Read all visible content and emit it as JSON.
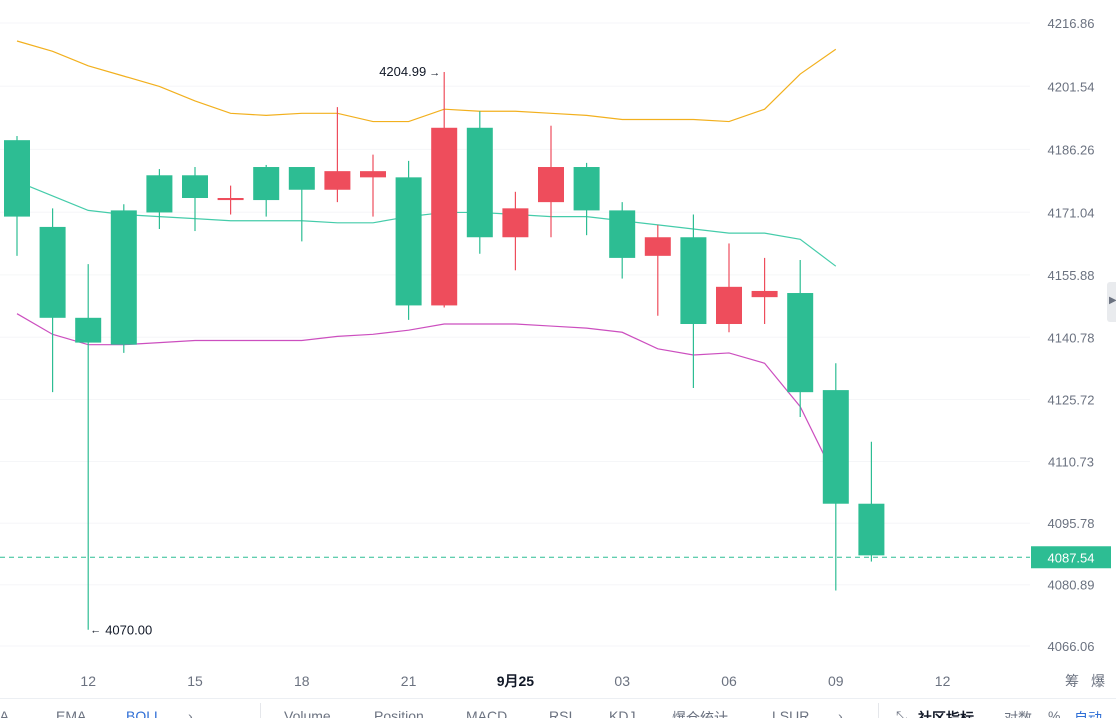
{
  "chart_data": {
    "type": "candlestick",
    "indicator": "BOLL",
    "y_ticks": [
      "4216.86",
      "4201.54",
      "4186.26",
      "4171.04",
      "4155.88",
      "4140.78",
      "4125.72",
      "4110.73",
      "4095.78",
      "4080.89",
      "4066.06"
    ],
    "y_tick_values": [
      4216.86,
      4201.54,
      4186.26,
      4171.04,
      4155.88,
      4140.78,
      4125.72,
      4110.73,
      4095.78,
      4080.89,
      4066.06
    ],
    "x_ticks": [
      "12",
      "15",
      "18",
      "21",
      "9月25",
      "03",
      "06",
      "09",
      "12"
    ],
    "x_tick_index": [
      2,
      5,
      8,
      11,
      14,
      17,
      20,
      23,
      26
    ],
    "current_price": "4087.54",
    "current_price_value": 4087.54,
    "max_label": "4204.99",
    "max_index": 12,
    "min_label": "4070.00",
    "min_index": 2,
    "candles": [
      {
        "o": 4170.0,
        "h": 4189.5,
        "l": 4160.5,
        "c": 4188.5
      },
      {
        "o": 4145.5,
        "h": 4172.0,
        "l": 4127.5,
        "c": 4167.5
      },
      {
        "o": 4139.5,
        "h": 4158.5,
        "l": 4070.0,
        "c": 4145.5
      },
      {
        "o": 4139.0,
        "h": 4173.0,
        "l": 4137.0,
        "c": 4171.5
      },
      {
        "o": 4171.0,
        "h": 4181.5,
        "l": 4167.0,
        "c": 4180.0
      },
      {
        "o": 4174.5,
        "h": 4182.0,
        "l": 4166.5,
        "c": 4180.0
      },
      {
        "o": 4174.5,
        "h": 4177.5,
        "l": 4170.5,
        "c": 4174.0
      },
      {
        "o": 4174.0,
        "h": 4182.5,
        "l": 4170.0,
        "c": 4182.0
      },
      {
        "o": 4176.5,
        "h": 4181.0,
        "l": 4164.0,
        "c": 4182.0
      },
      {
        "o": 4181.0,
        "h": 4196.5,
        "l": 4173.5,
        "c": 4176.5
      },
      {
        "o": 4181.0,
        "h": 4185.0,
        "l": 4170.0,
        "c": 4179.5
      },
      {
        "o": 4148.5,
        "h": 4183.5,
        "l": 4145.0,
        "c": 4179.5
      },
      {
        "o": 4191.5,
        "h": 4204.99,
        "l": 4148.0,
        "c": 4148.5
      },
      {
        "o": 4165.0,
        "h": 4195.5,
        "l": 4161.0,
        "c": 4191.5
      },
      {
        "o": 4172.0,
        "h": 4176.0,
        "l": 4157.0,
        "c": 4165.0
      },
      {
        "o": 4182.0,
        "h": 4192.0,
        "l": 4165.0,
        "c": 4173.5
      },
      {
        "o": 4171.5,
        "h": 4183.0,
        "l": 4165.5,
        "c": 4182.0
      },
      {
        "o": 4160.0,
        "h": 4173.5,
        "l": 4155.0,
        "c": 4171.5
      },
      {
        "o": 4165.0,
        "h": 4168.0,
        "l": 4146.0,
        "c": 4160.5
      },
      {
        "o": 4144.0,
        "h": 4170.5,
        "l": 4128.5,
        "c": 4165.0
      },
      {
        "o": 4153.0,
        "h": 4163.5,
        "l": 4142.0,
        "c": 4144.0
      },
      {
        "o": 4152.0,
        "h": 4160.0,
        "l": 4144.0,
        "c": 4150.5
      },
      {
        "o": 4127.5,
        "h": 4159.5,
        "l": 4121.5,
        "c": 4151.5
      },
      {
        "o": 4100.5,
        "h": 4134.5,
        "l": 4079.5,
        "c": 4128.0
      },
      {
        "o": 4088.0,
        "h": 4115.5,
        "l": 4086.5,
        "c": 4100.5
      }
    ],
    "boll_upper": [
      4212.5,
      4210.0,
      4206.5,
      4204.0,
      4201.5,
      4198.0,
      4195.0,
      4194.5,
      4195.0,
      4195.0,
      4193.0,
      4193.0,
      4196.0,
      4195.5,
      4195.5,
      4195.0,
      4194.5,
      4193.5,
      4193.5,
      4193.5,
      4193.0,
      4196.0,
      4204.5,
      4210.5
    ],
    "boll_middle": [
      4178.5,
      4175.0,
      4171.5,
      4170.5,
      4170.0,
      4169.5,
      4169.0,
      4169.0,
      4169.0,
      4168.5,
      4168.5,
      4170.0,
      4171.0,
      4171.0,
      4170.5,
      4170.0,
      4170.0,
      4169.0,
      4168.0,
      4167.0,
      4166.0,
      4166.0,
      4164.5,
      4158.0
    ],
    "boll_lower": [
      4146.5,
      4141.5,
      4139.0,
      4139.0,
      4139.5,
      4140.0,
      4140.0,
      4140.0,
      4140.0,
      4141.0,
      4141.5,
      4142.5,
      4144.0,
      4144.0,
      4144.0,
      4143.5,
      4143.0,
      4142.0,
      4138.0,
      4136.5,
      4137.0,
      4134.5,
      4124.0,
      4106.5
    ]
  },
  "ui": {
    "indicator_tabs": [
      "MA",
      "EMA",
      "BOLL"
    ],
    "sub_tabs": [
      "Volume",
      "Position",
      "MACD",
      "RSI",
      "KDJ",
      "爆仓统计",
      "LSUR"
    ],
    "community_indicators": "社区指标",
    "log_scale": "对数",
    "percent": "%",
    "auto": "自动",
    "scale_right_1": "筹",
    "scale_right_2": "爆"
  },
  "colors": {
    "up": "#2dbd93",
    "down": "#ee4d5c",
    "boll_upper": "#f2b01e",
    "boll_middle": "#45ccaa",
    "boll_lower": "#cc4fbf",
    "price_line": "#2dbd93",
    "active_tab": "#2f6fd6"
  }
}
